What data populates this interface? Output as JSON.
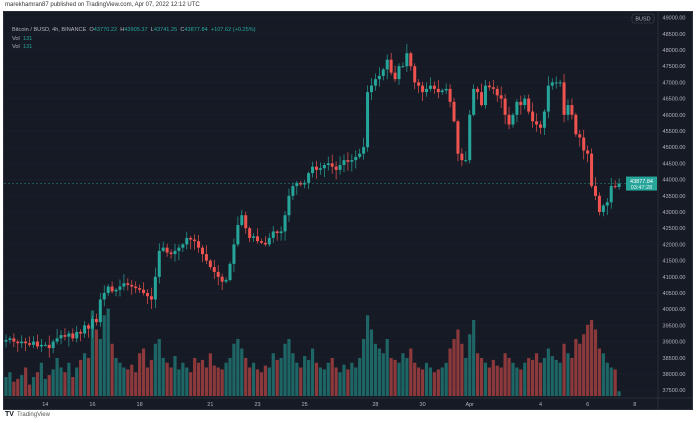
{
  "publisher_line": "marekhamran87 published on TradingView.com, Apr 07, 2022 12:12 UTC",
  "legend": {
    "symbol": "Bitcoin / BUSD, 4h, BINANCE",
    "open_label": "O",
    "open": "43770.22",
    "high_label": "H",
    "high": "43905.37",
    "low_label": "L",
    "low": "43741.25",
    "close_label": "C",
    "close": "43877.84",
    "change": "+107.62 (+0.25%)",
    "vol_rows": [
      {
        "label": "Vol",
        "value": "131"
      },
      {
        "label": "Vol",
        "value": "131"
      }
    ]
  },
  "footer": {
    "logo": "TV",
    "brand": "TradingView"
  },
  "colors": {
    "up": "#26a69a",
    "down": "#ef5350",
    "background": "#161a25",
    "axis_text": "#b2b5be"
  },
  "chart_data": {
    "type": "candlestick",
    "interval": "4h",
    "currency_label": "BUSD",
    "ylim": [
      37300,
      49200
    ],
    "y_ticks": [
      "49000.00",
      "48500.00",
      "48000.00",
      "47500.00",
      "47000.00",
      "46500.00",
      "46000.00",
      "45500.00",
      "45000.00",
      "44500.00",
      "44000.00",
      "43500.00",
      "43000.00",
      "42500.00",
      "42000.00",
      "41500.00",
      "41000.00",
      "40500.00",
      "40000.00",
      "39500.00",
      "39000.00",
      "38500.00",
      "38000.00",
      "37500.00"
    ],
    "x_ticks": [
      {
        "label": "14",
        "candle": 10
      },
      {
        "label": "16",
        "candle": 22
      },
      {
        "label": "18",
        "candle": 34
      },
      {
        "label": "21",
        "candle": 52
      },
      {
        "label": "23",
        "candle": 64
      },
      {
        "label": "25",
        "candle": 76
      },
      {
        "label": "28",
        "candle": 94
      },
      {
        "label": "30",
        "candle": 106
      },
      {
        "label": "Apr",
        "candle": 118
      },
      {
        "label": "4",
        "candle": 136
      },
      {
        "label": "6",
        "candle": 148
      },
      {
        "label": "8",
        "candle": 160
      }
    ],
    "last_price": {
      "value": "43877.84",
      "countdown": "03:47:28"
    },
    "close": [
      39050,
      39100,
      39000,
      38950,
      39000,
      38950,
      38900,
      39000,
      38850,
      38900,
      38900,
      38800,
      39000,
      39100,
      39200,
      39150,
      39250,
      39100,
      39300,
      39250,
      39500,
      39400,
      39700,
      39600,
      40300,
      40500,
      40700,
      40550,
      40600,
      40700,
      40800,
      40750,
      40700,
      40650,
      40600,
      40500,
      40400,
      40300,
      41000,
      41800,
      41900,
      41750,
      41700,
      41800,
      41900,
      42000,
      42200,
      42150,
      42100,
      41900,
      41700,
      41500,
      41300,
      41150,
      41000,
      40850,
      40900,
      41400,
      42000,
      42600,
      42900,
      42500,
      42200,
      42250,
      42100,
      42050,
      42000,
      42200,
      42400,
      42350,
      42400,
      42900,
      43500,
      43800,
      43900,
      43850,
      43900,
      44200,
      44400,
      44300,
      44350,
      44450,
      44500,
      44400,
      44300,
      44450,
      44600,
      44550,
      44600,
      44700,
      44800,
      45000,
      46700,
      46900,
      47100,
      47200,
      47400,
      47700,
      47300,
      47100,
      47500,
      47500,
      47900,
      47500,
      47000,
      46900,
      46700,
      46800,
      46900,
      46800,
      46700,
      46750,
      46800,
      46400,
      45800,
      44800,
      44600,
      44600,
      46000,
      46800,
      46700,
      46300,
      46900,
      46850,
      46800,
      46600,
      46500,
      46000,
      45700,
      46000,
      46400,
      46300,
      46500,
      46100,
      45800,
      45700,
      45600,
      46100,
      46900,
      47000,
      47000,
      47000,
      46000,
      46300,
      46000,
      45400,
      45300,
      44900,
      44800,
      43800,
      43500,
      43000,
      43200,
      43300,
      43800,
      43770.22,
      43877.84
    ],
    "volume": [
      20,
      25,
      15,
      18,
      22,
      30,
      12,
      20,
      25,
      35,
      18,
      22,
      28,
      40,
      30,
      25,
      35,
      20,
      30,
      38,
      45,
      40,
      90,
      70,
      60,
      85,
      92,
      55,
      40,
      35,
      30,
      28,
      33,
      25,
      45,
      50,
      30,
      38,
      55,
      60,
      40,
      35,
      30,
      42,
      28,
      35,
      30,
      25,
      40,
      35,
      38,
      30,
      45,
      32,
      30,
      28,
      35,
      40,
      55,
      60,
      50,
      40,
      30,
      35,
      28,
      25,
      32,
      30,
      45,
      38,
      40,
      55,
      60,
      45,
      35,
      30,
      42,
      38,
      50,
      35,
      30,
      28,
      35,
      40,
      30,
      25,
      33,
      28,
      35,
      30,
      40,
      60,
      85,
      70,
      55,
      50,
      45,
      60,
      40,
      38,
      35,
      45,
      40,
      50,
      35,
      30,
      28,
      35,
      30,
      25,
      28,
      30,
      35,
      50,
      60,
      70,
      55,
      40,
      65,
      80,
      45,
      40,
      35,
      30,
      38,
      32,
      30,
      45,
      40,
      35,
      30,
      28,
      35,
      40,
      38,
      45,
      35,
      40,
      50,
      42,
      38,
      35,
      55,
      45,
      40,
      60,
      55,
      65,
      75,
      80,
      70,
      50,
      45,
      35,
      30,
      28,
      5
    ]
  }
}
